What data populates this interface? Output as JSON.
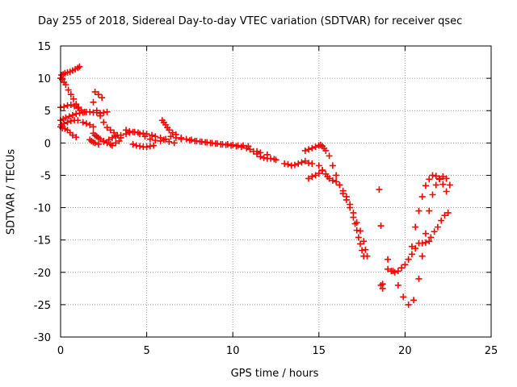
{
  "chart_data": {
    "type": "scatter",
    "title": "Day 255 of 2018, Sidereal Day-to-day VTEC variation (SDTVAR) for receiver qsec",
    "xlabel": "GPS time / hours",
    "ylabel": "SDTVAR / TECUs",
    "xlim": [
      0,
      25
    ],
    "ylim": [
      -30,
      15
    ],
    "xticks": [
      0,
      5,
      10,
      15,
      20,
      25
    ],
    "yticks": [
      -30,
      -25,
      -20,
      -15,
      -10,
      -5,
      0,
      5,
      10,
      15
    ],
    "grid": true,
    "marker": "+",
    "color": "#ff0000",
    "series": [
      {
        "name": "SDTVAR",
        "x": [
          0.05,
          0.15,
          0.25,
          0.4,
          0.55,
          0.7,
          0.85,
          1.0,
          1.1,
          0.0,
          0.1,
          0.2,
          0.3,
          0.45,
          0.6,
          0.75,
          0.9,
          1.05,
          0.0,
          0.2,
          0.4,
          0.6,
          0.8,
          1.0,
          1.2,
          1.4,
          0.0,
          0.1,
          0.25,
          0.4,
          0.55,
          0.7,
          0.9,
          0.05,
          0.2,
          0.4,
          0.6,
          0.8,
          1.0,
          0.0,
          0.15,
          0.3,
          0.5,
          0.7,
          0.9,
          1.1,
          1.3,
          1.5,
          1.7,
          1.9,
          2.1,
          2.3,
          2.5,
          2.7,
          1.3,
          1.5,
          1.7,
          1.9,
          2.0,
          2.2,
          2.4,
          1.9,
          2.1,
          2.3,
          2.5,
          2.7,
          2.9,
          3.1,
          3.3,
          3.5,
          1.9,
          2.0,
          2.1,
          2.2,
          2.3,
          2.5,
          2.7,
          2.9,
          3.0,
          3.2,
          3.4,
          1.7,
          1.8,
          1.9,
          2.0,
          2.2,
          2.5,
          2.8,
          3.0,
          3.2,
          3.5,
          3.8,
          4.0,
          4.3,
          4.6,
          4.9,
          5.2,
          5.5,
          5.8,
          6.1,
          6.4,
          6.7,
          7.0,
          3.8,
          4.0,
          4.2,
          4.5,
          4.8,
          5.0,
          5.3,
          5.5,
          5.8,
          6.0,
          6.3,
          6.6,
          5.9,
          6.0,
          6.1,
          6.2,
          6.3,
          6.5,
          6.7,
          4.2,
          4.4,
          4.6,
          4.8,
          5.0,
          5.2,
          5.4,
          7.0,
          7.3,
          7.6,
          7.9,
          8.2,
          8.5,
          8.8,
          9.1,
          9.4,
          9.7,
          10.0,
          10.3,
          10.6,
          10.9,
          7.5,
          7.8,
          8.1,
          8.4,
          8.7,
          9.0,
          9.3,
          9.6,
          9.9,
          10.2,
          10.5,
          10.8,
          11.0,
          11.2,
          11.4,
          11.6,
          11.8,
          12.0,
          12.2,
          12.4,
          12.5,
          11.4,
          11.6,
          12.0,
          13.0,
          13.2,
          13.4,
          13.6,
          13.8,
          14.0,
          14.2,
          14.4,
          14.6,
          14.2,
          14.4,
          14.6,
          14.8,
          15.0,
          15.1,
          15.2,
          15.3,
          15.4,
          15.2,
          15.0,
          14.8,
          14.6,
          14.4,
          15.0,
          15.2,
          15.4,
          15.5,
          15.6,
          15.8,
          16.0,
          16.2,
          16.4,
          16.6,
          16.8,
          17.0,
          17.2,
          17.4,
          17.6,
          17.7,
          17.8,
          15.6,
          15.8,
          16.0,
          16.2,
          16.4,
          16.6,
          16.8,
          17.0,
          17.1,
          17.2,
          17.3,
          17.4,
          17.5,
          17.6,
          18.5,
          18.6,
          18.7,
          18.7,
          18.6,
          19.0,
          19.2,
          19.4,
          19.6,
          19.8,
          20.0,
          20.2,
          20.4,
          20.6,
          20.8,
          21.0,
          21.2,
          21.4,
          21.5,
          21.7,
          21.9,
          22.1,
          22.3,
          22.5,
          19.0,
          19.3,
          19.6,
          19.9,
          20.2,
          20.5,
          20.8,
          21.0,
          21.2,
          21.4,
          21.6,
          21.8,
          22.0,
          22.2,
          22.4,
          22.6,
          20.2,
          20.4,
          20.6,
          20.8,
          21.0,
          21.2,
          21.4,
          21.6,
          21.8,
          22.0,
          22.2,
          22.4
        ],
        "y": [
          10.5,
          10.6,
          10.8,
          10.9,
          11.0,
          11.2,
          11.4,
          11.6,
          11.8,
          10.0,
          9.8,
          9.4,
          9.0,
          8.2,
          7.5,
          6.8,
          6.0,
          5.5,
          5.5,
          5.6,
          5.8,
          5.9,
          5.7,
          5.4,
          5.1,
          4.8,
          2.5,
          2.3,
          2.2,
          2.0,
          1.6,
          1.2,
          0.9,
          2.8,
          3.0,
          3.2,
          3.4,
          3.5,
          3.5,
          3.5,
          3.7,
          3.9,
          4.1,
          4.3,
          4.5,
          4.6,
          4.7,
          4.8,
          4.8,
          4.7,
          4.7,
          4.6,
          4.7,
          4.8,
          3.2,
          3.0,
          2.8,
          2.5,
          7.9,
          7.5,
          7.0,
          6.3,
          5.0,
          4.2,
          3.2,
          2.4,
          2.0,
          1.6,
          1.2,
          0.8,
          1.5,
          1.2,
          1.0,
          0.8,
          0.6,
          0.3,
          0.0,
          -0.2,
          -0.4,
          0.0,
          0.3,
          0.5,
          0.3,
          0.1,
          0.0,
          -0.2,
          0.2,
          0.5,
          0.8,
          1.0,
          1.2,
          1.4,
          1.6,
          1.7,
          1.4,
          1.0,
          0.6,
          0.4,
          0.3,
          0.6,
          1.0,
          0.8,
          0.6,
          2.0,
          1.8,
          1.7,
          1.6,
          1.5,
          1.4,
          1.2,
          1.0,
          0.8,
          0.5,
          0.2,
          0.0,
          3.5,
          3.2,
          2.8,
          2.4,
          2.0,
          1.6,
          1.3,
          -0.2,
          -0.4,
          -0.5,
          -0.6,
          -0.6,
          -0.5,
          -0.4,
          0.8,
          0.6,
          0.5,
          0.3,
          0.2,
          0.1,
          0.0,
          -0.1,
          -0.2,
          -0.2,
          -0.3,
          -0.4,
          -0.4,
          -0.5,
          0.4,
          0.3,
          0.2,
          0.1,
          0.0,
          -0.1,
          -0.2,
          -0.3,
          -0.4,
          -0.5,
          -0.6,
          -0.8,
          -1.0,
          -1.3,
          -1.7,
          -2.1,
          -2.3,
          -2.4,
          -2.4,
          -2.5,
          -2.6,
          -1.3,
          -1.5,
          -1.8,
          -3.2,
          -3.3,
          -3.5,
          -3.4,
          -3.2,
          -3.0,
          -2.8,
          -3.1,
          -3.2,
          -1.2,
          -1.0,
          -0.8,
          -0.6,
          -0.4,
          -0.3,
          -0.5,
          -0.8,
          -1.2,
          -4.3,
          -4.7,
          -5.0,
          -5.2,
          -5.5,
          -3.5,
          -4.2,
          -4.8,
          -5.2,
          -5.5,
          -5.8,
          -6.0,
          -6.5,
          -7.4,
          -8.3,
          -9.5,
          -10.8,
          -12.3,
          -13.6,
          -15.2,
          -16.5,
          -17.5,
          -2.0,
          -3.5,
          -5.0,
          -6.5,
          -7.8,
          -8.8,
          -10.0,
          -11.5,
          -12.5,
          -13.5,
          -14.6,
          -15.6,
          -16.6,
          -17.5,
          -7.2,
          -12.8,
          -21.8,
          -22.5,
          -22.0,
          -19.5,
          -19.8,
          -20.0,
          -19.8,
          -19.3,
          -18.8,
          -18.0,
          -17.2,
          -16.3,
          -15.5,
          -15.5,
          -15.4,
          -15.2,
          -14.6,
          -13.7,
          -13.0,
          -12.0,
          -11.2,
          -10.8,
          -18.0,
          -19.8,
          -22.0,
          -23.8,
          -25.0,
          -24.3,
          -21.0,
          -17.5,
          -14.0,
          -10.5,
          -8.0,
          -6.5,
          -5.5,
          -5.2,
          -5.5,
          -6.5,
          -18.0,
          -16.0,
          -13.0,
          -10.5,
          -8.3,
          -6.6,
          -5.6,
          -5.0,
          -5.1,
          -5.6,
          -6.4,
          -7.5
        ]
      }
    ]
  }
}
